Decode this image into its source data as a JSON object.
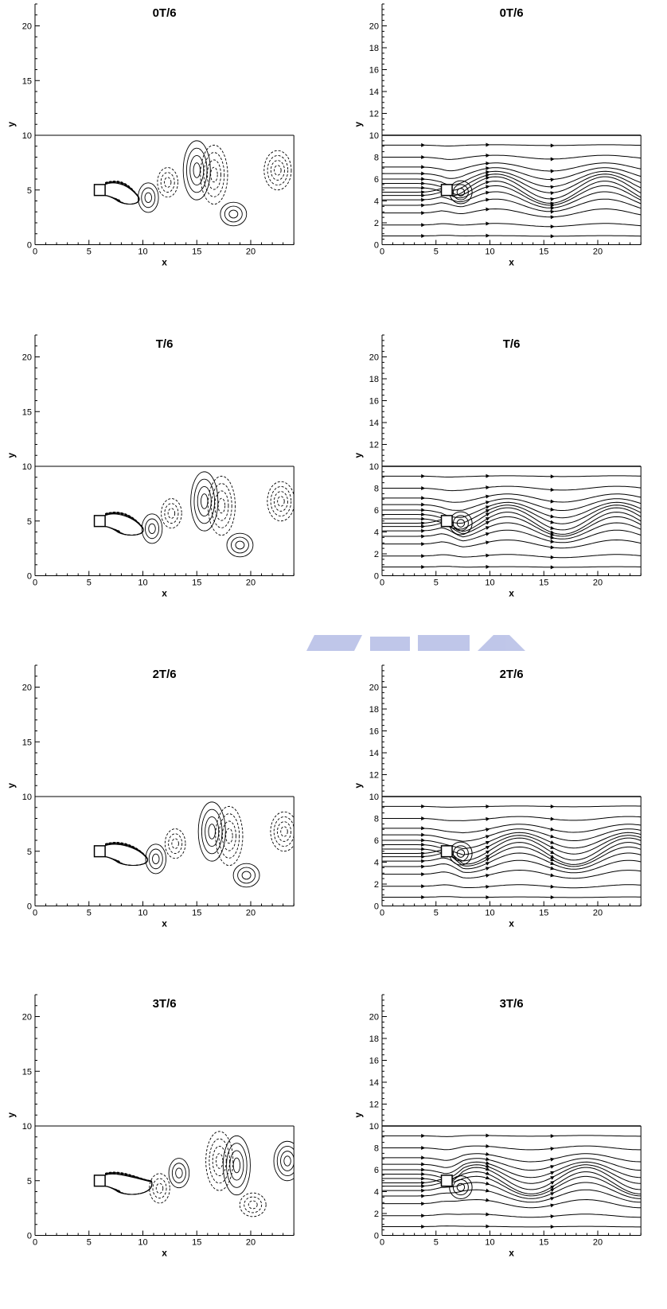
{
  "chart_data": [
    {
      "type": "contour",
      "title": "0T/6",
      "xlabel": "x",
      "ylabel": "y",
      "xlim": [
        0,
        24
      ],
      "ylim": [
        0,
        22
      ],
      "domain_x": [
        0,
        24
      ],
      "domain_y": [
        0,
        10
      ],
      "obstacle": {
        "x": [
          5.5,
          6.5
        ],
        "y": [
          4.5,
          5.5
        ]
      },
      "xticks": [
        0,
        5,
        10,
        15,
        20
      ],
      "yticks": [
        0,
        5,
        10,
        15,
        20
      ],
      "sign": 1,
      "shift": 0
    },
    {
      "type": "streamline",
      "title": "0T/6",
      "xlabel": "x",
      "ylabel": "y",
      "xlim": [
        0,
        24
      ],
      "ylim": [
        0,
        22
      ],
      "domain_x": [
        0,
        24
      ],
      "domain_y": [
        0,
        10
      ],
      "obstacle": {
        "x": [
          5.5,
          6.5
        ],
        "y": [
          4.5,
          5.5
        ]
      },
      "xticks": [
        0,
        5,
        10,
        15,
        20
      ],
      "yticks": [
        0,
        2,
        4,
        6,
        8,
        10,
        12,
        14,
        16,
        18,
        20
      ],
      "sign": 1,
      "shift": 0
    },
    {
      "type": "contour",
      "title": "T/6",
      "xlabel": "x",
      "ylabel": "y",
      "xlim": [
        0,
        24
      ],
      "ylim": [
        0,
        22
      ],
      "domain_x": [
        0,
        24
      ],
      "domain_y": [
        0,
        10
      ],
      "obstacle": {
        "x": [
          5.5,
          6.5
        ],
        "y": [
          4.5,
          5.5
        ]
      },
      "xticks": [
        0,
        5,
        10,
        15,
        20
      ],
      "yticks": [
        0,
        5,
        10,
        15,
        20
      ],
      "sign": 1,
      "shift": 1
    },
    {
      "type": "streamline",
      "title": "T/6",
      "xlabel": "x",
      "ylabel": "y",
      "xlim": [
        0,
        24
      ],
      "ylim": [
        0,
        22
      ],
      "domain_x": [
        0,
        24
      ],
      "domain_y": [
        0,
        10
      ],
      "obstacle": {
        "x": [
          5.5,
          6.5
        ],
        "y": [
          4.5,
          5.5
        ]
      },
      "xticks": [
        0,
        5,
        10,
        15,
        20
      ],
      "yticks": [
        0,
        2,
        4,
        6,
        8,
        10,
        12,
        14,
        16,
        18,
        20
      ],
      "sign": 1,
      "shift": 1
    },
    {
      "type": "contour",
      "title": "2T/6",
      "xlabel": "x",
      "ylabel": "y",
      "xlim": [
        0,
        24
      ],
      "ylim": [
        0,
        22
      ],
      "domain_x": [
        0,
        24
      ],
      "domain_y": [
        0,
        10
      ],
      "obstacle": {
        "x": [
          5.5,
          6.5
        ],
        "y": [
          4.5,
          5.5
        ]
      },
      "xticks": [
        0,
        5,
        10,
        15,
        20
      ],
      "yticks": [
        0,
        5,
        10,
        15,
        20
      ],
      "sign": 1,
      "shift": 2
    },
    {
      "type": "streamline",
      "title": "2T/6",
      "xlabel": "x",
      "ylabel": "y",
      "xlim": [
        0,
        24
      ],
      "ylim": [
        0,
        22
      ],
      "domain_x": [
        0,
        24
      ],
      "domain_y": [
        0,
        10
      ],
      "obstacle": {
        "x": [
          5.5,
          6.5
        ],
        "y": [
          4.5,
          5.5
        ]
      },
      "xticks": [
        0,
        5,
        10,
        15,
        20
      ],
      "yticks": [
        0,
        2,
        4,
        6,
        8,
        10,
        12,
        14,
        16,
        18,
        20
      ],
      "sign": 1,
      "shift": 2
    },
    {
      "type": "contour",
      "title": "3T/6",
      "xlabel": "x",
      "ylabel": "y",
      "xlim": [
        0,
        24
      ],
      "ylim": [
        0,
        22
      ],
      "domain_x": [
        0,
        24
      ],
      "domain_y": [
        0,
        10
      ],
      "obstacle": {
        "x": [
          5.5,
          6.5
        ],
        "y": [
          4.5,
          5.5
        ]
      },
      "xticks": [
        0,
        5,
        10,
        15,
        20
      ],
      "yticks": [
        0,
        5,
        10,
        15,
        20
      ],
      "sign": -1,
      "shift": 3
    },
    {
      "type": "streamline",
      "title": "3T/6",
      "xlabel": "x",
      "ylabel": "y",
      "xlim": [
        0,
        24
      ],
      "ylim": [
        0,
        22
      ],
      "domain_x": [
        0,
        24
      ],
      "domain_y": [
        0,
        10
      ],
      "obstacle": {
        "x": [
          5.5,
          6.5
        ],
        "y": [
          4.5,
          5.5
        ]
      },
      "xticks": [
        0,
        5,
        10,
        15,
        20
      ],
      "yticks": [
        0,
        2,
        4,
        6,
        8,
        10,
        12,
        14,
        16,
        18,
        20
      ],
      "sign": -1,
      "shift": 3
    }
  ]
}
